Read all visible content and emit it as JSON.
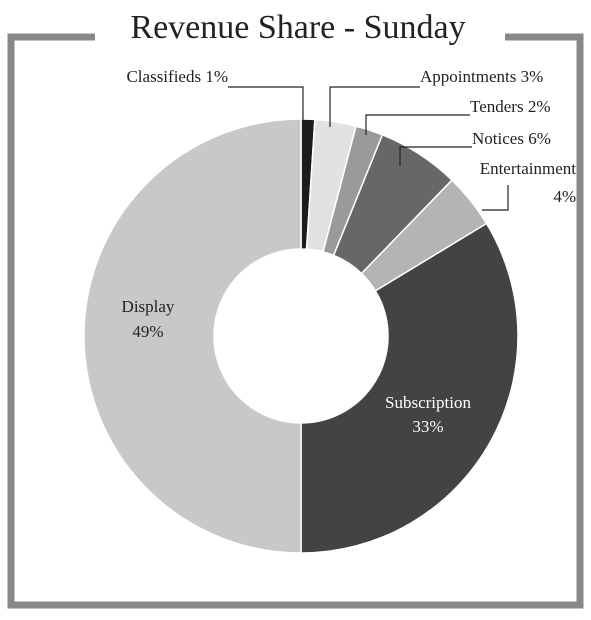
{
  "chart_data": {
    "type": "donut",
    "title": "Revenue Share - Sunday",
    "categories": [
      "Classifieds",
      "Appointments",
      "Tenders",
      "Notices",
      "Entertainment",
      "Subscription",
      "Display"
    ],
    "values": [
      1,
      3,
      2,
      6,
      4,
      33,
      49
    ],
    "value_labels": [
      "1%",
      "3%",
      "2%",
      "6%",
      "4%",
      "33%",
      "49%"
    ],
    "colors": [
      "#1c1c1c",
      "#e2e2e2",
      "#9a9a9a",
      "#676767",
      "#b4b4b4",
      "#434343",
      "#c8c8c8"
    ]
  }
}
